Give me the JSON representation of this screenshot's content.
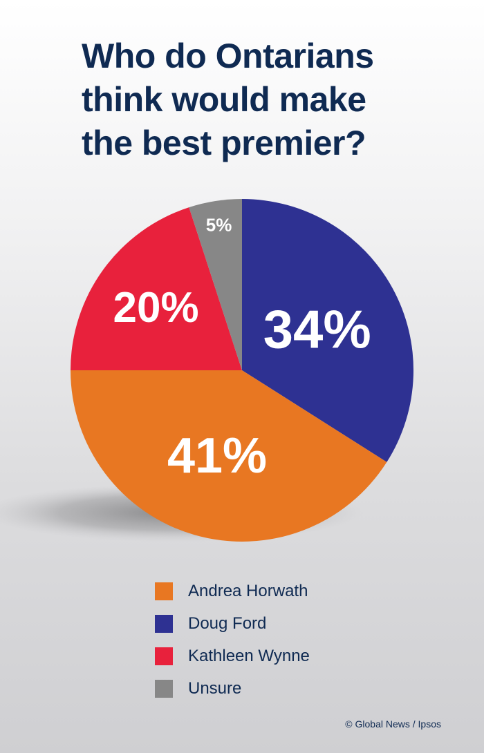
{
  "title_lines": [
    "Who do Ontarians",
    "think would make",
    "the best premier?"
  ],
  "credit": "© Global News / Ipsos",
  "chart_data": {
    "type": "pie",
    "title": "Who do Ontarians think would make the best premier?",
    "unit": "%",
    "slices": [
      {
        "name": "Doug Ford",
        "value": 34,
        "label": "34%",
        "color": "#2e3192"
      },
      {
        "name": "Andrea Horwath",
        "value": 41,
        "label": "41%",
        "color": "#e87722"
      },
      {
        "name": "Kathleen Wynne",
        "value": 20,
        "label": "20%",
        "color": "#e8213c"
      },
      {
        "name": "Unsure",
        "value": 5,
        "label": "5%",
        "color": "#878787"
      }
    ],
    "legend": [
      {
        "name": "Andrea Horwath",
        "color": "#e87722"
      },
      {
        "name": "Doug Ford",
        "color": "#2e3192"
      },
      {
        "name": "Kathleen Wynne",
        "color": "#e8213c"
      },
      {
        "name": "Unsure",
        "color": "#878787"
      }
    ],
    "legend_position": "bottom"
  }
}
